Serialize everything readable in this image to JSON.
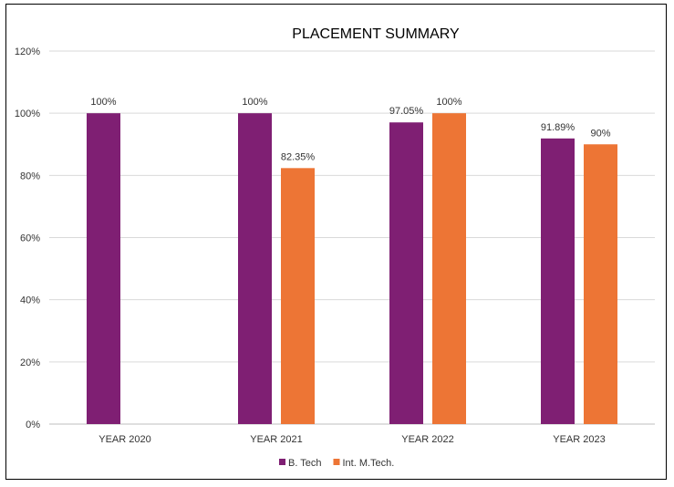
{
  "chart_data": {
    "type": "bar",
    "title": "PLACEMENT SUMMARY",
    "xlabel": "",
    "ylabel": "",
    "categories": [
      "YEAR 2020",
      "YEAR 2021",
      "YEAR 2022",
      "YEAR 2023"
    ],
    "series": [
      {
        "name": "B. Tech",
        "color": "#7f1f73",
        "values": [
          100,
          100,
          97.05,
          91.89
        ],
        "labels": [
          "100%",
          "100%",
          "97.05%",
          "91.89%"
        ]
      },
      {
        "name": "Int. M.Tech.",
        "color": "#ed7535",
        "values": [
          null,
          82.35,
          100,
          90
        ],
        "labels": [
          "",
          "82.35%",
          "100%",
          "90%"
        ]
      }
    ],
    "ylim": [
      0,
      120
    ],
    "yticks": [
      0,
      20,
      40,
      60,
      80,
      100,
      120
    ],
    "ytick_labels": [
      "0%",
      "20%",
      "40%",
      "60%",
      "80%",
      "100%",
      "120%"
    ],
    "grid": true,
    "legend_position": "bottom"
  }
}
